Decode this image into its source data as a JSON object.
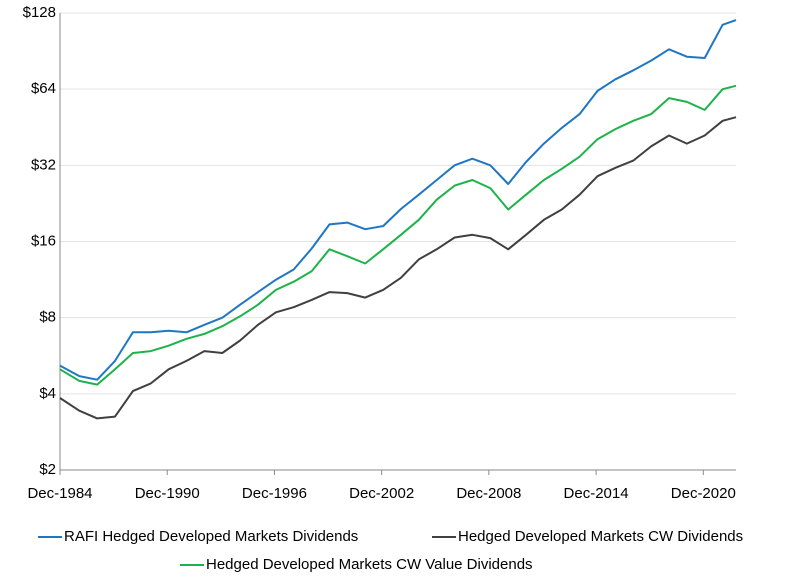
{
  "chart_data": {
    "type": "line",
    "x": [
      1984.92,
      1986,
      1987,
      1988,
      1989,
      1990,
      1991,
      1992,
      1993,
      1994,
      1995,
      1996,
      1997,
      1998,
      1999,
      2000,
      2001,
      2002,
      2003,
      2004,
      2005,
      2006,
      2007,
      2008,
      2009,
      2010,
      2011,
      2012,
      2013,
      2014,
      2015,
      2016,
      2017,
      2018,
      2019,
      2020,
      2021,
      2022,
      2022.75
    ],
    "series": [
      {
        "name": "RAFI Hedged Developed Markets Dividends",
        "color": "#1f77c4",
        "values": [
          5.17,
          4.7,
          4.55,
          5.4,
          7.0,
          7.0,
          7.1,
          7.0,
          7.5,
          8.0,
          9.0,
          10.1,
          11.3,
          12.4,
          15.0,
          18.7,
          19.0,
          17.9,
          18.4,
          21.5,
          24.5,
          28,
          32,
          34,
          32,
          27,
          33,
          39,
          45,
          51,
          63,
          70,
          76,
          83,
          92,
          86,
          85,
          115,
          120
        ]
      },
      {
        "name": "Hedged Developed Markets CW Dividends",
        "color": "#404040",
        "values": [
          3.85,
          3.43,
          3.2,
          3.25,
          4.1,
          4.4,
          5.0,
          5.4,
          5.9,
          5.8,
          6.5,
          7.5,
          8.4,
          8.8,
          9.4,
          10.1,
          10.0,
          9.6,
          10.3,
          11.5,
          13.6,
          14.9,
          16.6,
          17.0,
          16.5,
          14.9,
          17,
          19.5,
          21.4,
          24.5,
          29,
          31.3,
          33.4,
          38,
          42,
          39,
          42,
          48,
          49.6
        ]
      },
      {
        "name": "Hedged Developed Markets CW Value Dividends",
        "color": "#1db34a",
        "values": [
          5.0,
          4.5,
          4.35,
          5.0,
          5.8,
          5.9,
          6.2,
          6.6,
          6.9,
          7.4,
          8.1,
          9.0,
          10.3,
          11.1,
          12.2,
          14.9,
          14.0,
          13.1,
          14.9,
          17,
          19.5,
          23.4,
          26.6,
          28,
          26,
          21.4,
          24.5,
          28,
          31,
          34.6,
          40.6,
          44.5,
          48,
          51,
          59,
          57,
          53,
          64,
          66
        ]
      }
    ],
    "xlim": [
      1984.92,
      2022.75
    ],
    "xticks": [
      {
        "value": 1984.92,
        "label": "Dec-1984"
      },
      {
        "value": 1990.92,
        "label": "Dec-1990"
      },
      {
        "value": 1996.92,
        "label": "Dec-1996"
      },
      {
        "value": 2002.92,
        "label": "Dec-2002"
      },
      {
        "value": 2008.92,
        "label": "Dec-2008"
      },
      {
        "value": 2014.92,
        "label": "Dec-2014"
      },
      {
        "value": 2020.92,
        "label": "Dec-2020"
      }
    ],
    "ylim": [
      2,
      128
    ],
    "yticks": [
      {
        "value": 2,
        "label": "$2"
      },
      {
        "value": 4,
        "label": "$4"
      },
      {
        "value": 8,
        "label": "$8"
      },
      {
        "value": 16,
        "label": "$16"
      },
      {
        "value": 32,
        "label": "$32"
      },
      {
        "value": 64,
        "label": "$64"
      },
      {
        "value": 128,
        "label": "$128"
      }
    ],
    "log_scale": true,
    "grid": true,
    "legend": "bottom"
  }
}
